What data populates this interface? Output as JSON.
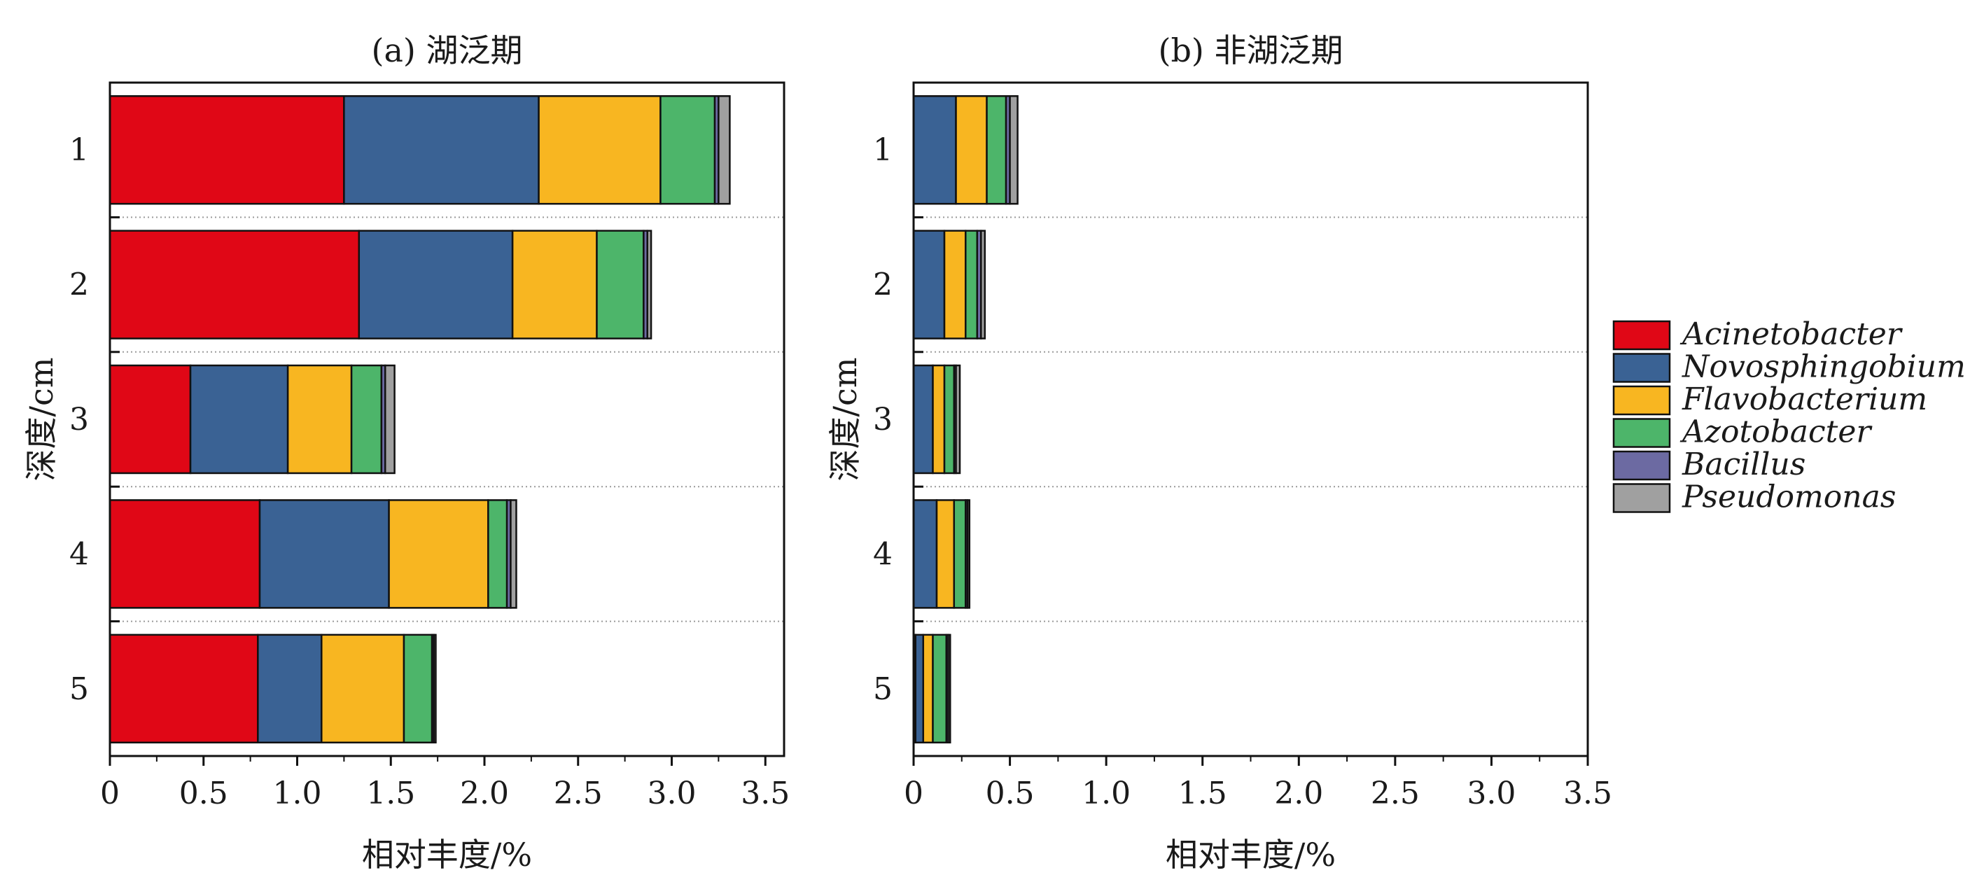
{
  "chart_data": [
    {
      "type": "bar",
      "orientation": "horizontal",
      "stacked": true,
      "title": "(a) 湖泛期",
      "xlabel": "相对丰度/%",
      "ylabel": "深度/cm",
      "xlim": [
        0,
        3.6
      ],
      "xticks": [
        "0",
        "0.5",
        "1.0",
        "1.5",
        "2.0",
        "2.5",
        "3.0",
        "3.5"
      ],
      "categories": [
        "1",
        "2",
        "3",
        "4",
        "5"
      ],
      "series": [
        {
          "name": "Acinetobacter",
          "values": [
            1.25,
            1.33,
            0.43,
            0.8,
            0.79
          ]
        },
        {
          "name": "Novosphingobium",
          "values": [
            1.04,
            0.82,
            0.52,
            0.69,
            0.34
          ]
        },
        {
          "name": "Flavobacterium",
          "values": [
            0.65,
            0.45,
            0.34,
            0.53,
            0.44
          ]
        },
        {
          "name": "Azotobacter",
          "values": [
            0.29,
            0.25,
            0.16,
            0.1,
            0.15
          ]
        },
        {
          "name": "Bacillus",
          "values": [
            0.02,
            0.02,
            0.02,
            0.02,
            0.01
          ]
        },
        {
          "name": "Pseudomonas",
          "values": [
            0.06,
            0.02,
            0.05,
            0.03,
            0.01
          ]
        }
      ],
      "grid": "dotted separators between bars"
    },
    {
      "type": "bar",
      "orientation": "horizontal",
      "stacked": true,
      "title": "(b) 非湖泛期",
      "xlabel": "相对丰度/%",
      "ylabel": "深度/cm",
      "xlim": [
        0,
        3.5
      ],
      "xticks": [
        "0",
        "0.5",
        "1.0",
        "1.5",
        "2.0",
        "2.5",
        "3.0",
        "3.5"
      ],
      "categories": [
        "1",
        "2",
        "3",
        "4",
        "5"
      ],
      "series": [
        {
          "name": "Acinetobacter",
          "values": [
            0,
            0,
            0,
            0,
            0.01
          ]
        },
        {
          "name": "Novosphingobium",
          "values": [
            0.22,
            0.16,
            0.1,
            0.12,
            0.04
          ]
        },
        {
          "name": "Flavobacterium",
          "values": [
            0.16,
            0.11,
            0.06,
            0.09,
            0.05
          ]
        },
        {
          "name": "Azotobacter",
          "values": [
            0.1,
            0.06,
            0.05,
            0.06,
            0.07
          ]
        },
        {
          "name": "Bacillus",
          "values": [
            0.02,
            0.02,
            0.01,
            0.01,
            0.01
          ]
        },
        {
          "name": "Pseudomonas",
          "values": [
            0.04,
            0.02,
            0.02,
            0.01,
            0.01
          ]
        }
      ],
      "grid": "dotted separators between bars"
    }
  ],
  "legend": {
    "placement": "right",
    "items": [
      {
        "name": "Acinetobacter",
        "color": "#e00716"
      },
      {
        "name": "Novosphingobium",
        "color": "#3a6294"
      },
      {
        "name": "Flavobacterium",
        "color": "#f8b621"
      },
      {
        "name": "Azotobacter",
        "color": "#4db56a"
      },
      {
        "name": "Bacillus",
        "color": "#6c6aa2"
      },
      {
        "name": "Pseudomonas",
        "color": "#a0a0a0"
      }
    ]
  }
}
